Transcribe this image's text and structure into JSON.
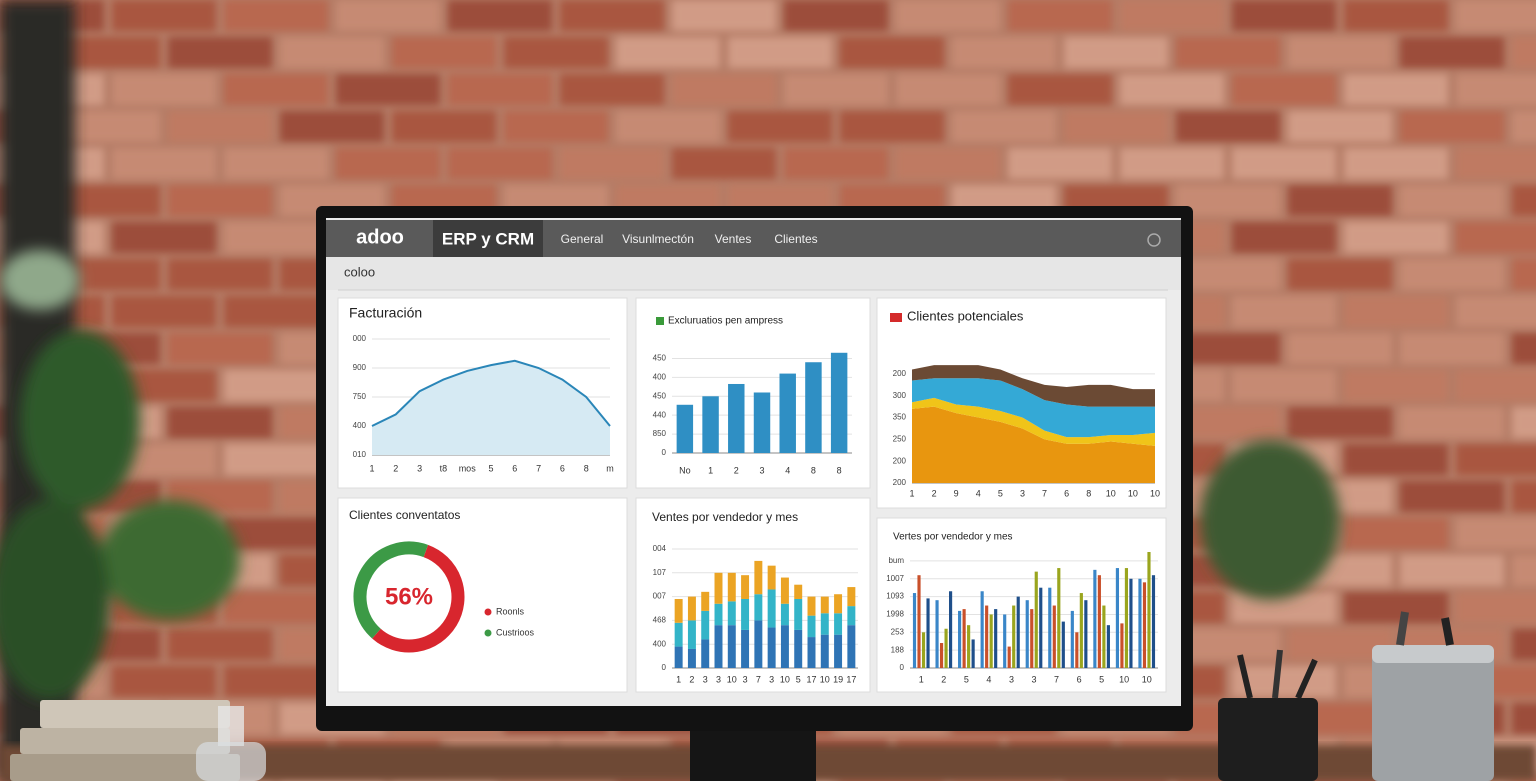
{
  "header": {
    "logo": "adoo",
    "app": "ERP y CRM",
    "nav": [
      "General",
      "Visunlmectón",
      "Ventes",
      "Clientes"
    ],
    "subheader": "coloo"
  },
  "chart_data": [
    {
      "type": "area",
      "title": "Facturación",
      "color": "#2a86b8",
      "categories": [
        "1",
        "2",
        "3",
        "t8",
        "mos",
        "5",
        "6",
        "7",
        "6",
        "8",
        "m"
      ],
      "values": [
        1.0,
        1.4,
        2.2,
        2.6,
        2.9,
        3.1,
        3.25,
        3.0,
        2.6,
        2.0,
        1.0
      ],
      "ylim": [
        0,
        4
      ],
      "yticks": [
        {
          "value": 4,
          "label": "000"
        },
        {
          "value": 3,
          "label": "900"
        },
        {
          "value": 2,
          "label": "750"
        },
        {
          "value": 1,
          "label": "400"
        },
        {
          "value": 0,
          "label": "010"
        }
      ],
      "grid": true
    },
    {
      "type": "bar",
      "title": "Excluruatios pen ampress",
      "color": "#2f8fc4",
      "legend_color": "#3a9a3a",
      "categories": [
        "No",
        "1",
        "2",
        "3",
        "4",
        "8",
        "8"
      ],
      "values": [
        2.55,
        3.0,
        3.65,
        3.2,
        4.2,
        4.8,
        5.3
      ],
      "ylim": [
        0,
        5.5
      ],
      "yticks": [
        {
          "value": 5,
          "label": "450"
        },
        {
          "value": 4,
          "label": "400"
        },
        {
          "value": 3,
          "label": "450"
        },
        {
          "value": 2,
          "label": "440"
        },
        {
          "value": 1,
          "label": "850"
        },
        0
      ],
      "grid": true
    },
    {
      "type": "stacked_area",
      "title": "Clientes potenciales",
      "legend_color": "#d42a2a",
      "categories": [
        "1",
        "2",
        "9",
        "4",
        "5",
        "3",
        "7",
        "6",
        "8",
        "10",
        "10",
        "10"
      ],
      "series": [
        {
          "color": "#e8960f",
          "values": [
            3.4,
            3.5,
            3.2,
            3.0,
            2.8,
            2.5,
            2.0,
            1.8,
            1.8,
            1.9,
            1.8,
            1.7
          ]
        },
        {
          "color": "#f0c419",
          "values": [
            0.3,
            0.4,
            0.4,
            0.5,
            0.5,
            0.5,
            0.4,
            0.3,
            0.3,
            0.3,
            0.4,
            0.6
          ]
        },
        {
          "color": "#34a9d6",
          "values": [
            1.0,
            0.9,
            1.2,
            1.3,
            1.4,
            1.3,
            1.4,
            1.5,
            1.4,
            1.3,
            1.3,
            1.2
          ]
        },
        {
          "color": "#6b4a34",
          "values": [
            0.5,
            0.6,
            0.6,
            0.6,
            0.5,
            0.5,
            0.7,
            0.8,
            1.0,
            1.0,
            0.8,
            0.8
          ]
        }
      ],
      "ylim": [
        0,
        5.5
      ],
      "yticks": [
        {
          "value": 5,
          "label": "200"
        },
        {
          "value": 4,
          "label": "300"
        },
        {
          "value": 3,
          "label": "350"
        },
        {
          "value": 2,
          "label": "250"
        },
        {
          "value": 1,
          "label": "200"
        },
        {
          "value": 0,
          "label": "200"
        }
      ],
      "grid": true
    },
    {
      "type": "donut",
      "title": "Clientes conventatos",
      "categories": [
        "Roonls",
        "Custrioos"
      ],
      "values": [
        56,
        44
      ],
      "value_labels": [
        "56%",
        null
      ],
      "colors": [
        "#d8262e",
        "#3c9a46"
      ]
    },
    {
      "type": "stacked_bar",
      "title": "Ventes por vendedor y mes",
      "categories": [
        "1",
        "2",
        "3",
        "3",
        "10",
        "3",
        "7",
        "3",
        "10",
        "5",
        "17",
        "10",
        "19",
        "17"
      ],
      "series": [
        {
          "color": "#2f74b5",
          "values": [
            0.9,
            0.8,
            1.2,
            1.8,
            1.8,
            1.6,
            2.0,
            1.7,
            1.8,
            1.6,
            1.3,
            1.4,
            1.4,
            1.8
          ]
        },
        {
          "color": "#33b4c8",
          "values": [
            1.0,
            1.2,
            1.2,
            0.9,
            1.0,
            1.3,
            1.1,
            1.6,
            0.9,
            1.3,
            0.9,
            0.9,
            0.9,
            0.8
          ]
        },
        {
          "color": "#eba424",
          "values": [
            1.0,
            1.0,
            0.8,
            1.3,
            1.2,
            1.0,
            1.4,
            1.0,
            1.1,
            0.6,
            0.8,
            0.7,
            0.8,
            0.8
          ]
        }
      ],
      "ylim": [
        0,
        5
      ],
      "yticks": [
        {
          "value": 5,
          "label": "004"
        },
        {
          "value": 4,
          "label": "107"
        },
        {
          "value": 3,
          "label": "007"
        },
        {
          "value": 2,
          "label": "468"
        },
        {
          "value": 1,
          "label": "400"
        },
        0
      ],
      "grid": true
    },
    {
      "type": "grouped_bar",
      "title": "Vertes por vendedor y mes",
      "categories": [
        "1",
        "2",
        "5",
        "4",
        "3",
        "3",
        "7",
        "6",
        "5",
        "10",
        "10"
      ],
      "series": [
        {
          "color": "#3a86c8",
          "values": [
            4.2,
            3.8,
            3.2,
            4.3,
            3.0,
            3.8,
            4.5,
            3.2,
            5.5,
            5.6,
            5.0
          ]
        },
        {
          "color": "#c9502a",
          "values": [
            5.2,
            1.4,
            3.3,
            3.5,
            1.2,
            3.3,
            3.5,
            2.0,
            5.2,
            2.5,
            4.8
          ]
        },
        {
          "color": "#9aa51e",
          "values": [
            2.0,
            2.2,
            2.4,
            3.0,
            3.5,
            5.4,
            5.6,
            4.2,
            3.5,
            5.6,
            6.5
          ]
        },
        {
          "color": "#1f4f8a",
          "values": [
            3.9,
            4.3,
            1.6,
            3.3,
            4.0,
            4.5,
            2.6,
            3.8,
            2.4,
            5.0,
            5.2
          ]
        }
      ],
      "ylim": [
        0,
        6.5
      ],
      "yticks": [
        {
          "value": 6,
          "label": "bum"
        },
        {
          "value": 5,
          "label": "1007"
        },
        {
          "value": 4,
          "label": "1093"
        },
        {
          "value": 3,
          "label": "1998"
        },
        {
          "value": 2,
          "label": "253"
        },
        {
          "value": 1,
          "label": "188"
        },
        0
      ],
      "grid": true
    }
  ]
}
